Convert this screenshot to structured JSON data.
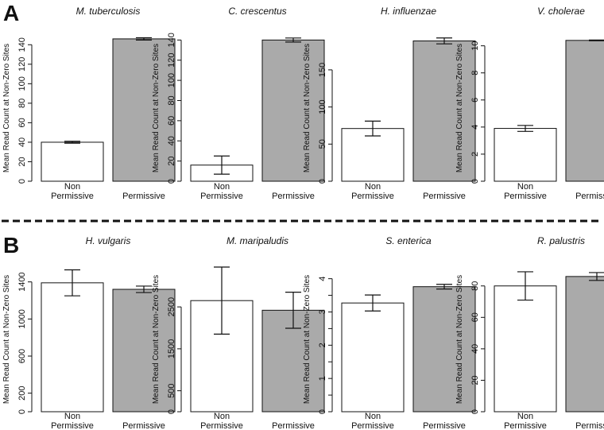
{
  "panel_labels": [
    "A",
    "B"
  ],
  "chart_data": [
    {
      "type": "bar",
      "title": "M. tuberculosis",
      "ylabel": "Mean Read Count at Non-Zero Sites",
      "categories": [
        [
          "Non",
          "Permissive"
        ],
        [
          "Permissive"
        ]
      ],
      "values": [
        40,
        146
      ],
      "errors": [
        1,
        1.2
      ],
      "yticks": [
        0,
        20,
        40,
        60,
        80,
        100,
        120,
        140
      ],
      "ylim": [
        0,
        150
      ],
      "fill_colors": [
        "#ffffff",
        "#aaaaaa"
      ]
    },
    {
      "type": "bar",
      "title": "C. crescentus",
      "ylabel": "Mean Read Count at Non-Zero Sites",
      "categories": [
        [
          "Non",
          "Permissive"
        ],
        [
          "Permissive"
        ]
      ],
      "values": [
        16,
        140
      ],
      "errors": [
        9,
        2
      ],
      "yticks": [
        0,
        20,
        40,
        60,
        80,
        100,
        120,
        140
      ],
      "ylim": [
        0,
        145
      ],
      "fill_colors": [
        "#ffffff",
        "#aaaaaa"
      ]
    },
    {
      "type": "bar",
      "title": "H. influenzae",
      "ylabel": "Mean Read Count at Non-Zero Sites",
      "categories": [
        [
          "Non",
          "Permissive"
        ],
        [
          "Permissive"
        ]
      ],
      "values": [
        71,
        189
      ],
      "errors": [
        10,
        4
      ],
      "yticks": [
        0,
        50,
        100,
        150
      ],
      "ylim": [
        0,
        197
      ],
      "fill_colors": [
        "#ffffff",
        "#aaaaaa"
      ]
    },
    {
      "type": "bar",
      "title": "V. cholerae",
      "ylabel": "Mean Read Count at Non-Zero Sites",
      "categories": [
        [
          "Non",
          "Permissive"
        ],
        [
          "Permissive"
        ]
      ],
      "values": [
        3.9,
        10.4
      ],
      "errors": [
        0.22,
        0.03
      ],
      "yticks": [
        0,
        2,
        4,
        6,
        8,
        10
      ],
      "ylim": [
        0,
        10.8
      ],
      "fill_colors": [
        "#ffffff",
        "#aaaaaa"
      ]
    },
    {
      "type": "bar",
      "title": "H. vulgaris",
      "ylabel": "Mean Read Count at Non-Zero Sites",
      "categories": [
        [
          "Non",
          "Permissive"
        ],
        [
          "Permissive"
        ]
      ],
      "values": [
        1390,
        1320
      ],
      "errors": [
        140,
        35
      ],
      "yticks": [
        0,
        200,
        600,
        1000,
        1400
      ],
      "ylim": [
        0,
        1560
      ],
      "fill_colors": [
        "#ffffff",
        "#aaaaaa"
      ]
    },
    {
      "type": "bar",
      "title": "M. maripaludis",
      "ylabel": "Mean Read Count at Non-Zero Sites",
      "categories": [
        [
          "Non",
          "Permissive"
        ],
        [
          "Permissive"
        ]
      ],
      "values": [
        2650,
        2420
      ],
      "errors": [
        800,
        430
      ],
      "yticks": [
        0,
        500,
        1500,
        2500
      ],
      "ylim": [
        0,
        3450
      ],
      "fill_colors": [
        "#ffffff",
        "#aaaaaa"
      ]
    },
    {
      "type": "bar",
      "title": "S. enterica",
      "ylabel": "Mean Read Count at Non-Zero Sites",
      "categories": [
        [
          "Non",
          "Permissive"
        ],
        [
          "Permissive"
        ]
      ],
      "values": [
        3.27,
        3.76
      ],
      "errors": [
        0.24,
        0.07
      ],
      "yticks": [
        0,
        0.5,
        1,
        1.5,
        2,
        2.5,
        3,
        3.5,
        4
      ],
      "ytick_labels": [
        "0",
        "",
        "1",
        "",
        "2",
        "",
        "3",
        "",
        "4"
      ],
      "ylim": [
        0,
        4.35
      ],
      "fill_colors": [
        "#ffffff",
        "#aaaaaa"
      ]
    },
    {
      "type": "bar",
      "title": "R. palustris",
      "ylabel": "Mean Read Count at Non-Zero Sites",
      "categories": [
        [
          "Non",
          "Permissive"
        ],
        [
          "Permissive"
        ]
      ],
      "values": [
        80,
        86
      ],
      "errors": [
        9,
        2.5
      ],
      "yticks": [
        0,
        20,
        40,
        60,
        80
      ],
      "ylim": [
        0,
        92
      ],
      "fill_colors": [
        "#ffffff",
        "#aaaaaa"
      ]
    }
  ]
}
